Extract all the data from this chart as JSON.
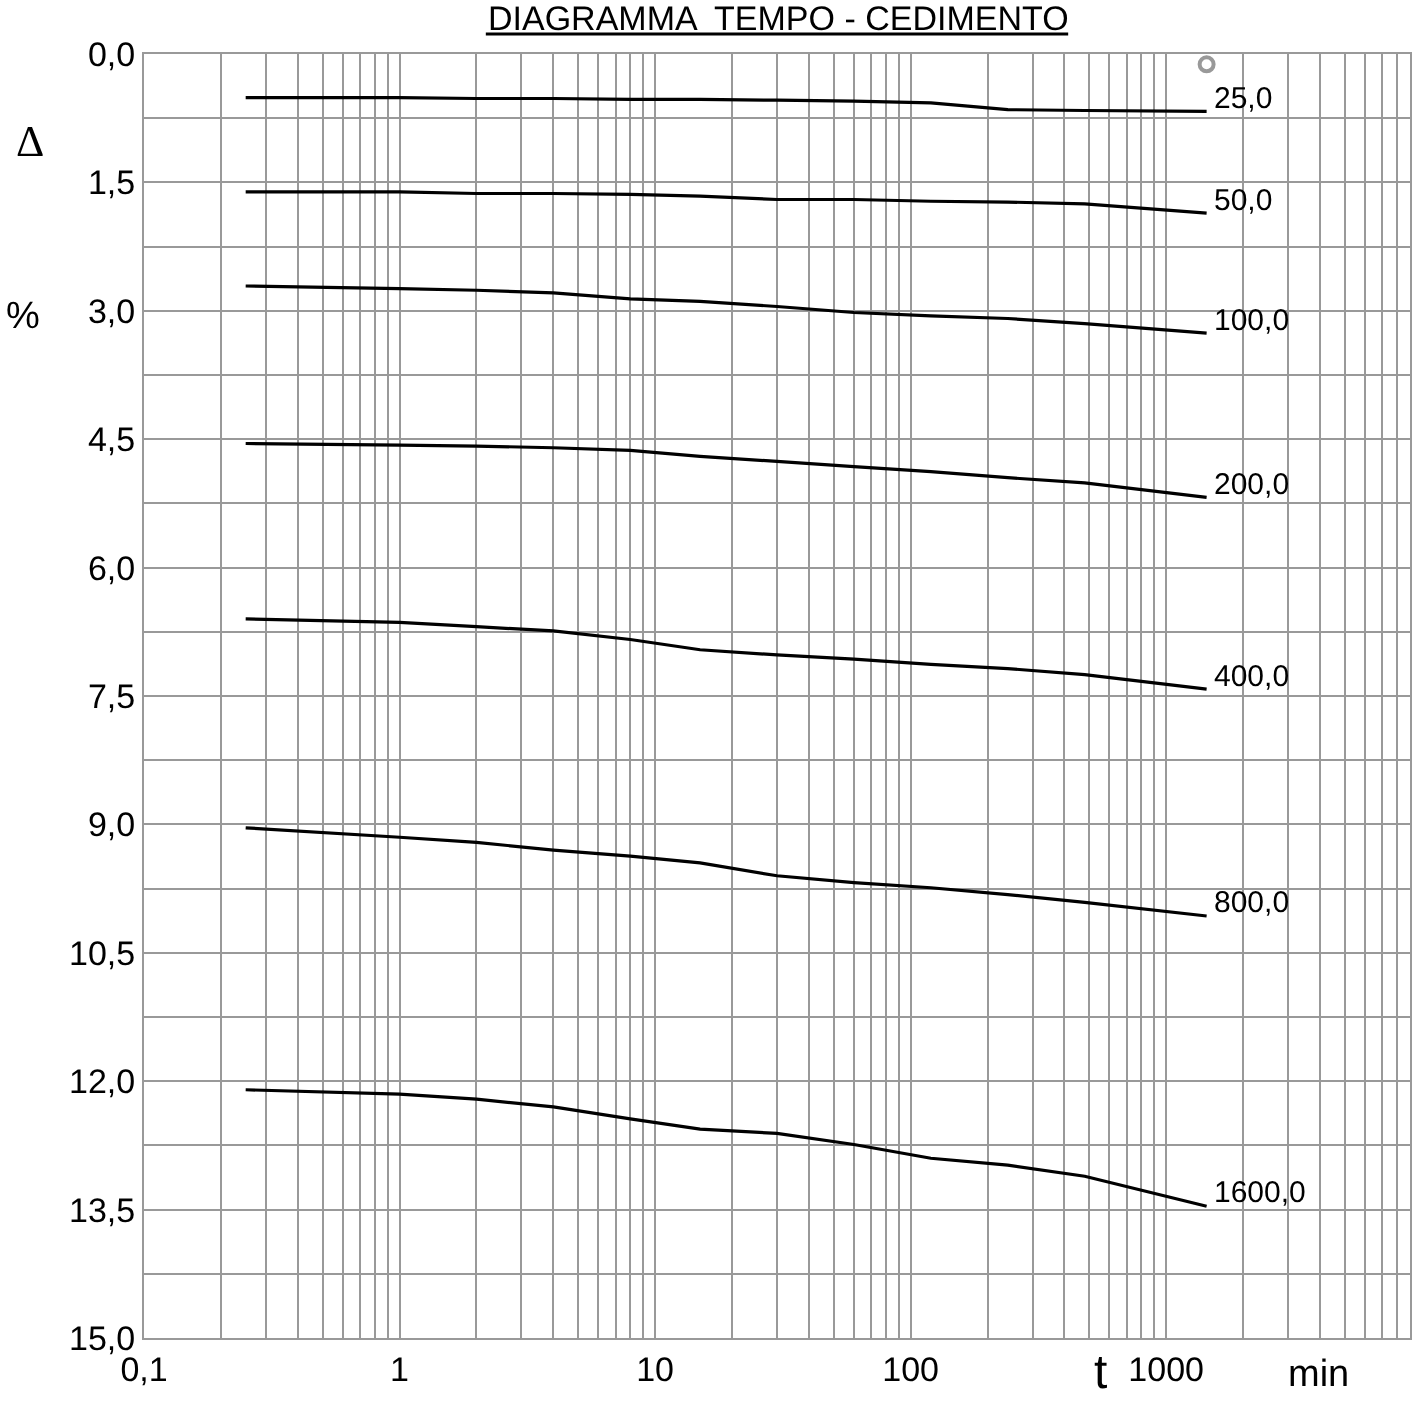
{
  "chart_data": {
    "type": "line",
    "title": "DIAGRAMMA  TEMPO - CEDIMENTO",
    "xlabel": "t",
    "ylabel": "Δ %",
    "annotations": [
      "min"
    ],
    "log": "x",
    "grid": true,
    "legend": false,
    "marker": "none",
    "line_style": "solid",
    "x": [
      0.25,
      1,
      2,
      4,
      8,
      15,
      30,
      60,
      120,
      240,
      480,
      1440
    ],
    "xlim": [
      0.1,
      9000
    ],
    "xticks": [
      {
        "value": 0.1,
        "label": "0,1"
      },
      {
        "value": 0.2,
        "label": null
      },
      {
        "value": 0.3,
        "label": null
      },
      {
        "value": 0.4,
        "label": null
      },
      {
        "value": 0.5,
        "label": null
      },
      {
        "value": 0.6,
        "label": null
      },
      {
        "value": 0.7,
        "label": null
      },
      {
        "value": 0.8,
        "label": null
      },
      {
        "value": 0.9,
        "label": null
      },
      1,
      {
        "value": 2,
        "label": null
      },
      {
        "value": 3,
        "label": null
      },
      {
        "value": 4,
        "label": null
      },
      {
        "value": 5,
        "label": null
      },
      {
        "value": 6,
        "label": null
      },
      {
        "value": 7,
        "label": null
      },
      {
        "value": 8,
        "label": null
      },
      {
        "value": 9,
        "label": null
      },
      10,
      {
        "value": 20,
        "label": null
      },
      {
        "value": 30,
        "label": null
      },
      {
        "value": 40,
        "label": null
      },
      {
        "value": 50,
        "label": null
      },
      {
        "value": 60,
        "label": null
      },
      {
        "value": 70,
        "label": null
      },
      {
        "value": 80,
        "label": null
      },
      {
        "value": 90,
        "label": null
      },
      100,
      {
        "value": 200,
        "label": null
      },
      {
        "value": 300,
        "label": null
      },
      {
        "value": 400,
        "label": null
      },
      {
        "value": 500,
        "label": null
      },
      {
        "value": 600,
        "label": null
      },
      {
        "value": 700,
        "label": null
      },
      {
        "value": 800,
        "label": null
      },
      {
        "value": 900,
        "label": null
      },
      1000,
      {
        "value": 2000,
        "label": null
      },
      {
        "value": 3000,
        "label": null
      },
      {
        "value": 4000,
        "label": null
      },
      {
        "value": 5000,
        "label": null
      },
      {
        "value": 6000,
        "label": null
      },
      {
        "value": 7000,
        "label": null
      },
      {
        "value": 8000,
        "label": null
      },
      {
        "value": 9000,
        "label": null
      }
    ],
    "ylim": [
      15,
      0
    ],
    "yticks": [
      {
        "value": 0,
        "label": "0,0"
      },
      {
        "value": 0.75,
        "label": null
      },
      {
        "value": 1.5,
        "label": "1,5"
      },
      {
        "value": 2.25,
        "label": null
      },
      {
        "value": 3,
        "label": "3,0"
      },
      {
        "value": 3.75,
        "label": null
      },
      {
        "value": 4.5,
        "label": "4,5"
      },
      {
        "value": 5.25,
        "label": null
      },
      {
        "value": 6,
        "label": "6,0"
      },
      {
        "value": 6.75,
        "label": null
      },
      {
        "value": 7.5,
        "label": "7,5"
      },
      {
        "value": 8.25,
        "label": null
      },
      {
        "value": 9,
        "label": "9,0"
      },
      {
        "value": 9.75,
        "label": null
      },
      {
        "value": 10.5,
        "label": "10,5"
      },
      {
        "value": 11.25,
        "label": null
      },
      {
        "value": 12,
        "label": "12,0"
      },
      {
        "value": 12.75,
        "label": null
      },
      {
        "value": 13.5,
        "label": "13,5"
      },
      {
        "value": 14.25,
        "label": null
      },
      {
        "value": 15,
        "label": "15,0"
      }
    ],
    "series": [
      {
        "name": "25,0",
        "color": "#000000",
        "values": [
          0.51,
          0.51,
          0.52,
          0.52,
          0.53,
          0.53,
          0.54,
          0.55,
          0.57,
          0.65,
          0.66,
          0.67
        ]
      },
      {
        "name": "50,0",
        "color": "#000000",
        "values": [
          1.61,
          1.61,
          1.63,
          1.63,
          1.64,
          1.66,
          1.7,
          1.7,
          1.72,
          1.73,
          1.75,
          1.86
        ]
      },
      {
        "name": "100,0",
        "color": "#000000",
        "values": [
          2.71,
          2.74,
          2.76,
          2.79,
          2.86,
          2.89,
          2.95,
          3.02,
          3.06,
          3.09,
          3.15,
          3.26
        ]
      },
      {
        "name": "200,0",
        "color": "#000000",
        "values": [
          4.55,
          4.57,
          4.58,
          4.6,
          4.63,
          4.7,
          4.76,
          4.82,
          4.88,
          4.95,
          5.01,
          5.18
        ]
      },
      {
        "name": "400,0",
        "color": "#000000",
        "values": [
          6.6,
          6.64,
          6.69,
          6.74,
          6.84,
          6.96,
          7.02,
          7.07,
          7.13,
          7.18,
          7.25,
          7.42
        ]
      },
      {
        "name": "800,0",
        "color": "#000000",
        "values": [
          9.04,
          9.15,
          9.21,
          9.3,
          9.37,
          9.45,
          9.6,
          9.68,
          9.74,
          9.82,
          9.91,
          10.07
        ]
      },
      {
        "name": "1600,0",
        "color": "#000000",
        "values": [
          12.1,
          12.15,
          12.21,
          12.3,
          12.44,
          12.56,
          12.61,
          12.74,
          12.9,
          12.98,
          13.11,
          13.46
        ]
      },
      {
        "type": "scatter",
        "color": "#999999",
        "marker": "circle",
        "x": [
          1440
        ],
        "values": [
          0.12
        ]
      }
    ]
  }
}
